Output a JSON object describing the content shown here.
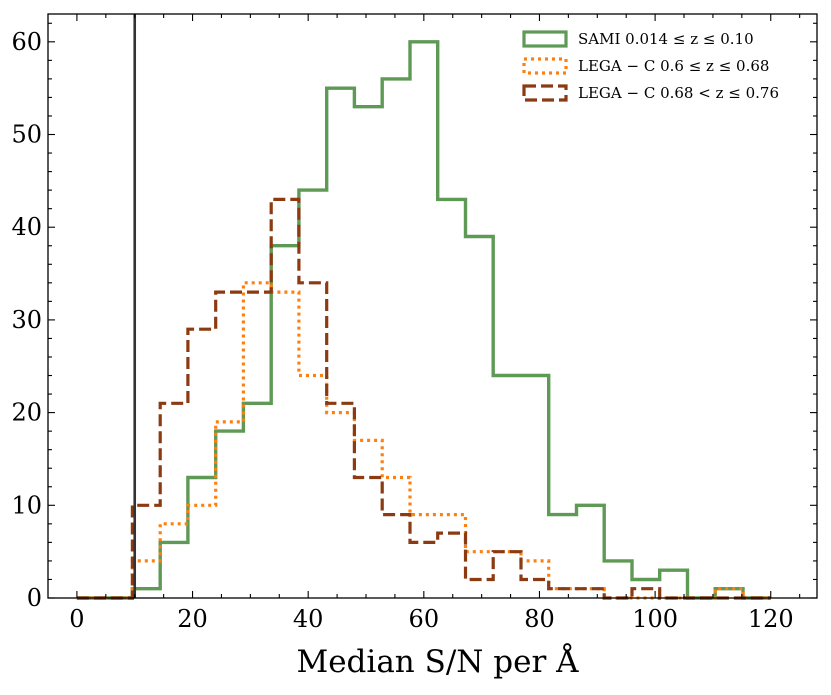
{
  "chart_data": {
    "type": "histogram",
    "title": "",
    "xlabel": "Median S/N per Å",
    "ylabel": "",
    "xlim": [
      -5,
      128
    ],
    "ylim": [
      0,
      63
    ],
    "xticks": [
      0,
      20,
      40,
      60,
      80,
      100,
      120
    ],
    "yticks": [
      0,
      10,
      20,
      30,
      40,
      50,
      60
    ],
    "xtick_labels": [
      "0",
      "20",
      "40",
      "60",
      "80",
      "100",
      "120"
    ],
    "ytick_labels": [
      "0",
      "10",
      "20",
      "30",
      "40",
      "50",
      "60"
    ],
    "threshold_line": {
      "x": 10,
      "color": "#333333"
    },
    "legend_position": "top-right",
    "series": [
      {
        "name": "SAMI 0.014 ≤ z ≤ 0.10",
        "color": "#5e9a55",
        "style": "solid",
        "edges": [
          0,
          4.8,
          9.6,
          14.4,
          19.2,
          24.0,
          28.8,
          33.6,
          38.4,
          43.2,
          48.0,
          52.8,
          57.6,
          62.4,
          67.2,
          72.0,
          76.8,
          81.6,
          86.4,
          91.2,
          96.0,
          100.8,
          105.6,
          110.4,
          115.2,
          120.0
        ],
        "values": [
          0,
          0,
          1,
          6,
          13,
          18,
          21,
          38,
          44,
          55,
          53,
          56,
          60,
          43,
          39,
          24,
          24,
          9,
          10,
          4,
          2,
          3,
          0,
          1,
          0
        ]
      },
      {
        "name": "LEGA − C 0.6 ≤ z ≤ 0.68",
        "color": "#ff7f0e",
        "style": "dotted",
        "edges": [
          0,
          4.8,
          9.6,
          14.4,
          19.2,
          24.0,
          28.8,
          33.6,
          38.4,
          43.2,
          48.0,
          52.8,
          57.6,
          62.4,
          67.2,
          72.0,
          76.8,
          81.6,
          86.4,
          91.2,
          96.0,
          100.8,
          105.6,
          110.4,
          115.2,
          120.0
        ],
        "values": [
          0,
          0,
          4,
          8,
          10,
          19,
          34,
          33,
          24,
          20,
          17,
          13,
          9,
          9,
          5,
          5,
          4,
          1,
          1,
          0,
          0,
          0,
          0,
          1,
          0
        ]
      },
      {
        "name": "LEGA − C 0.68 < z ≤ 0.76",
        "color": "#8b3a12",
        "style": "dashed",
        "edges": [
          0,
          4.8,
          9.6,
          14.4,
          19.2,
          24.0,
          28.8,
          33.6,
          38.4,
          43.2,
          48.0,
          52.8,
          57.6,
          62.4,
          67.2,
          72.0,
          76.8,
          81.6,
          86.4,
          91.2,
          96.0,
          100.8,
          105.6,
          110.4,
          115.2,
          120.0
        ],
        "values": [
          0,
          0,
          10,
          21,
          29,
          33,
          33,
          43,
          34,
          21,
          13,
          9,
          6,
          7,
          2,
          5,
          2,
          1,
          1,
          0,
          1,
          0,
          0,
          0,
          0
        ]
      }
    ]
  }
}
